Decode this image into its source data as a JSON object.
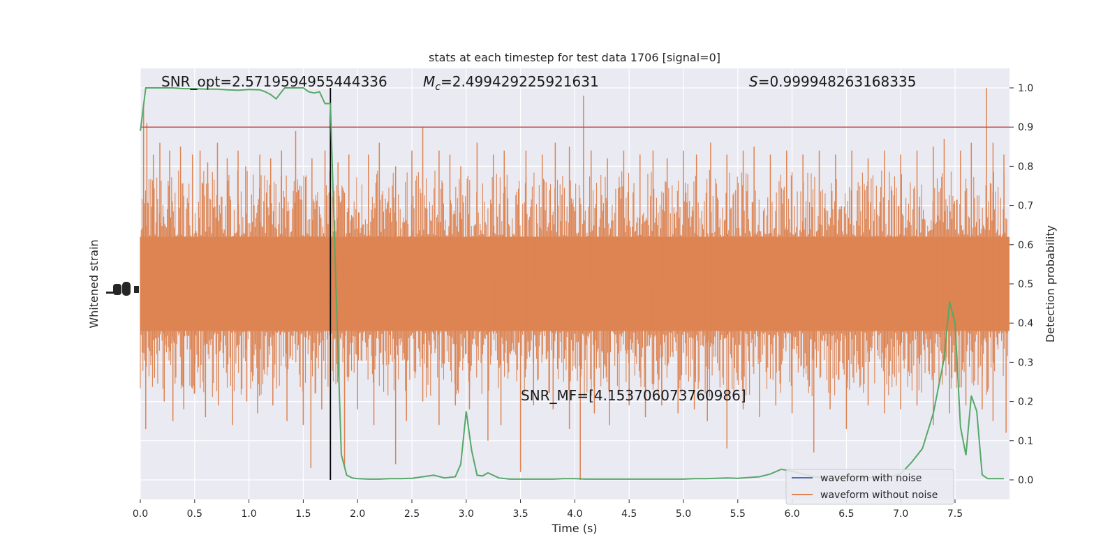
{
  "chart_data": {
    "type": "line",
    "title": "stats at each timestep for test data 1706 [signal=0]",
    "xlabel": "Time (s)",
    "ylabel_left": "Whitened strain",
    "ylabel_right": "Detection probability",
    "xlim": [
      0,
      8
    ],
    "ylim_right": [
      -0.05,
      1.05
    ],
    "x_ticks": [
      "0.0",
      "0.5",
      "1.0",
      "1.5",
      "2.0",
      "2.5",
      "3.0",
      "3.5",
      "4.0",
      "4.5",
      "5.0",
      "5.5",
      "6.0",
      "6.5",
      "7.0",
      "7.5"
    ],
    "y_ticks_right": [
      "0.0",
      "0.1",
      "0.2",
      "0.3",
      "0.4",
      "0.5",
      "0.6",
      "0.7",
      "0.8",
      "0.9",
      "1.0"
    ],
    "grid": true,
    "legend_position": "lower-right",
    "threshold": 0.9,
    "marker_time": 1.75,
    "annotations": {
      "snr_opt": "SNR_opt=2.5719594955444336",
      "mc_symbol": "M",
      "mc_sub": "c",
      "mc_value": "=2.499429225921631",
      "s_symbol": "S",
      "s_value": "=0.999948263168335",
      "snr_mf": "SNR_MF=[4.153706073760986]"
    },
    "series": [
      {
        "name": "waveform with noise",
        "color": "#4c72b0"
      },
      {
        "name": "waveform without noise",
        "color": "#dd8452"
      }
    ],
    "probability": {
      "color": "#55a868",
      "t": [
        0.0,
        0.05,
        0.1,
        0.2,
        0.3,
        0.4,
        0.5,
        0.6,
        0.7,
        0.8,
        0.9,
        1.0,
        1.1,
        1.15,
        1.2,
        1.25,
        1.3,
        1.33,
        1.4,
        1.5,
        1.55,
        1.6,
        1.65,
        1.7,
        1.75,
        1.8,
        1.85,
        1.9,
        1.95,
        2.0,
        2.1,
        2.2,
        2.3,
        2.4,
        2.5,
        2.6,
        2.7,
        2.8,
        2.9,
        2.95,
        3.0,
        3.05,
        3.1,
        3.15,
        3.2,
        3.3,
        3.4,
        3.5,
        3.6,
        3.7,
        3.8,
        3.9,
        4.0,
        4.1,
        4.2,
        4.3,
        4.4,
        4.5,
        4.6,
        4.7,
        4.8,
        4.9,
        5.0,
        5.1,
        5.2,
        5.3,
        5.4,
        5.5,
        5.6,
        5.7,
        5.8,
        5.9,
        6.0,
        6.1,
        6.2,
        6.3,
        6.4,
        6.5,
        6.6,
        6.7,
        6.8,
        6.9,
        7.0,
        7.1,
        7.2,
        7.3,
        7.4,
        7.45,
        7.5,
        7.55,
        7.6,
        7.65,
        7.7,
        7.75,
        7.8,
        7.85,
        7.9,
        7.95
      ],
      "p": [
        0.89,
        1.0,
        1.0,
        1.0,
        1.0,
        0.998,
        0.998,
        0.997,
        0.997,
        0.995,
        0.994,
        0.996,
        0.995,
        0.99,
        0.983,
        0.972,
        0.99,
        1.0,
        1.0,
        1.0,
        0.99,
        0.987,
        0.99,
        0.96,
        0.96,
        0.5,
        0.065,
        0.012,
        0.005,
        0.003,
        0.002,
        0.002,
        0.003,
        0.003,
        0.004,
        0.008,
        0.012,
        0.005,
        0.008,
        0.04,
        0.175,
        0.075,
        0.012,
        0.01,
        0.018,
        0.005,
        0.002,
        0.002,
        0.002,
        0.002,
        0.002,
        0.003,
        0.003,
        0.002,
        0.002,
        0.002,
        0.002,
        0.002,
        0.002,
        0.002,
        0.002,
        0.002,
        0.002,
        0.003,
        0.003,
        0.004,
        0.005,
        0.004,
        0.006,
        0.008,
        0.015,
        0.027,
        0.022,
        0.015,
        0.008,
        0.005,
        0.004,
        0.004,
        0.005,
        0.006,
        0.007,
        0.008,
        0.015,
        0.045,
        0.08,
        0.17,
        0.31,
        0.455,
        0.4,
        0.135,
        0.063,
        0.215,
        0.175,
        0.013,
        0.003,
        0.003,
        0.003,
        0.003
      ]
    },
    "strain_spikes_up": [
      [
        0.03,
        0.96
      ],
      [
        0.06,
        0.91
      ],
      [
        0.12,
        0.83
      ],
      [
        0.18,
        0.86
      ],
      [
        0.27,
        0.84
      ],
      [
        0.37,
        0.85
      ],
      [
        0.48,
        0.83
      ],
      [
        0.55,
        0.84
      ],
      [
        0.62,
        0.81
      ],
      [
        0.71,
        0.86
      ],
      [
        0.8,
        0.82
      ],
      [
        0.9,
        0.84
      ],
      [
        0.97,
        0.8
      ],
      [
        1.1,
        0.83
      ],
      [
        1.2,
        0.82
      ],
      [
        1.3,
        0.84
      ],
      [
        1.43,
        0.89
      ],
      [
        1.58,
        0.82
      ],
      [
        1.7,
        0.84
      ],
      [
        1.82,
        0.81
      ],
      [
        1.92,
        0.83
      ],
      [
        2.1,
        0.83
      ],
      [
        2.2,
        0.86
      ],
      [
        2.35,
        0.8
      ],
      [
        2.5,
        0.84
      ],
      [
        2.6,
        0.9
      ],
      [
        2.75,
        0.84
      ],
      [
        2.85,
        0.83
      ],
      [
        2.95,
        0.8
      ],
      [
        3.1,
        0.86
      ],
      [
        3.25,
        0.83
      ],
      [
        3.35,
        0.84
      ],
      [
        3.55,
        0.84
      ],
      [
        3.7,
        0.83
      ],
      [
        3.82,
        0.86
      ],
      [
        3.95,
        0.85
      ],
      [
        4.08,
        0.98
      ],
      [
        4.15,
        0.84
      ],
      [
        4.3,
        0.82
      ],
      [
        4.45,
        0.84
      ],
      [
        4.6,
        0.83
      ],
      [
        4.72,
        0.84
      ],
      [
        4.85,
        0.82
      ],
      [
        5.0,
        0.84
      ],
      [
        5.12,
        0.83
      ],
      [
        5.25,
        0.86
      ],
      [
        5.4,
        0.83
      ],
      [
        5.55,
        0.84
      ],
      [
        5.65,
        0.85
      ],
      [
        5.8,
        0.83
      ],
      [
        5.95,
        0.84
      ],
      [
        6.1,
        0.83
      ],
      [
        6.25,
        0.84
      ],
      [
        6.4,
        0.83
      ],
      [
        6.55,
        0.84
      ],
      [
        6.7,
        0.82
      ],
      [
        6.85,
        0.84
      ],
      [
        7.0,
        0.83
      ],
      [
        7.15,
        0.84
      ],
      [
        7.3,
        0.85
      ],
      [
        7.4,
        0.87
      ],
      [
        7.55,
        0.84
      ],
      [
        7.65,
        0.86
      ],
      [
        7.79,
        1.0
      ],
      [
        7.85,
        0.86
      ],
      [
        7.95,
        0.83
      ]
    ],
    "strain_spikes_down": [
      [
        0.05,
        0.13
      ],
      [
        0.13,
        0.26
      ],
      [
        0.22,
        0.2
      ],
      [
        0.3,
        0.15
      ],
      [
        0.4,
        0.18
      ],
      [
        0.5,
        0.22
      ],
      [
        0.6,
        0.16
      ],
      [
        0.72,
        0.19
      ],
      [
        0.85,
        0.14
      ],
      [
        0.98,
        0.2
      ],
      [
        1.08,
        0.17
      ],
      [
        1.22,
        0.19
      ],
      [
        1.35,
        0.15
      ],
      [
        1.5,
        0.14
      ],
      [
        1.57,
        0.03
      ],
      [
        1.67,
        0.18
      ],
      [
        1.88,
        0.03
      ],
      [
        2.0,
        0.18
      ],
      [
        2.15,
        0.14
      ],
      [
        2.35,
        0.04
      ],
      [
        2.45,
        0.15
      ],
      [
        2.6,
        0.2
      ],
      [
        2.75,
        0.14
      ],
      [
        2.9,
        0.19
      ],
      [
        3.03,
        0.18
      ],
      [
        3.2,
        0.1
      ],
      [
        3.32,
        0.14
      ],
      [
        3.5,
        0.02
      ],
      [
        3.62,
        0.19
      ],
      [
        3.8,
        0.18
      ],
      [
        3.95,
        0.13
      ],
      [
        4.05,
        0.0
      ],
      [
        4.18,
        0.17
      ],
      [
        4.32,
        0.14
      ],
      [
        4.5,
        0.19
      ],
      [
        4.65,
        0.16
      ],
      [
        4.8,
        0.19
      ],
      [
        4.95,
        0.17
      ],
      [
        5.1,
        0.18
      ],
      [
        5.22,
        0.15
      ],
      [
        5.4,
        0.08
      ],
      [
        5.55,
        0.18
      ],
      [
        5.7,
        0.16
      ],
      [
        5.85,
        0.19
      ],
      [
        6.0,
        0.17
      ],
      [
        6.2,
        0.07
      ],
      [
        6.35,
        0.18
      ],
      [
        6.5,
        0.13
      ],
      [
        6.7,
        0.19
      ],
      [
        6.85,
        0.17
      ],
      [
        7.0,
        0.18
      ],
      [
        7.15,
        0.19
      ],
      [
        7.3,
        0.14
      ],
      [
        7.45,
        0.17
      ],
      [
        7.6,
        0.19
      ],
      [
        7.75,
        0.18
      ],
      [
        7.85,
        0.15
      ],
      [
        7.97,
        0.12
      ]
    ]
  }
}
